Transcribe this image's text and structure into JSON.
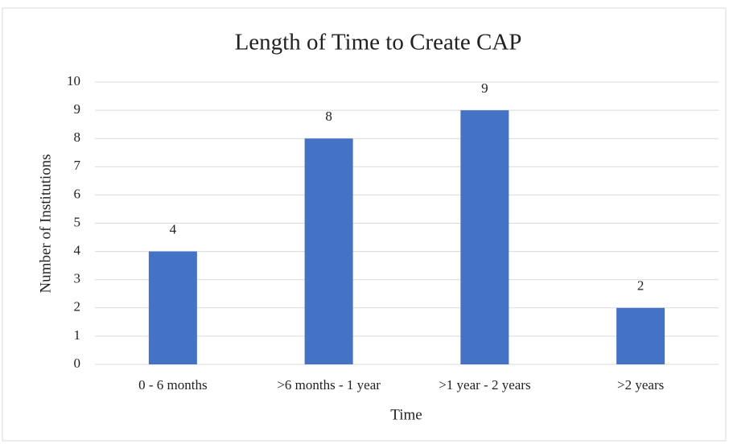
{
  "chart_data": {
    "type": "bar",
    "title": "Length of Time to Create CAP",
    "x_label": "Time",
    "y_label": "Number of Institutions",
    "categories": [
      "0 - 6 months",
      ">6 months - 1 year",
      ">1 year - 2 years",
      ">2 years"
    ],
    "values": [
      4,
      8,
      9,
      2
    ],
    "color": "#4472c4",
    "ylim": [
      0,
      10
    ],
    "yticks": [
      0,
      1,
      2,
      3,
      4,
      5,
      6,
      7,
      8,
      9,
      10
    ],
    "grid": true
  }
}
